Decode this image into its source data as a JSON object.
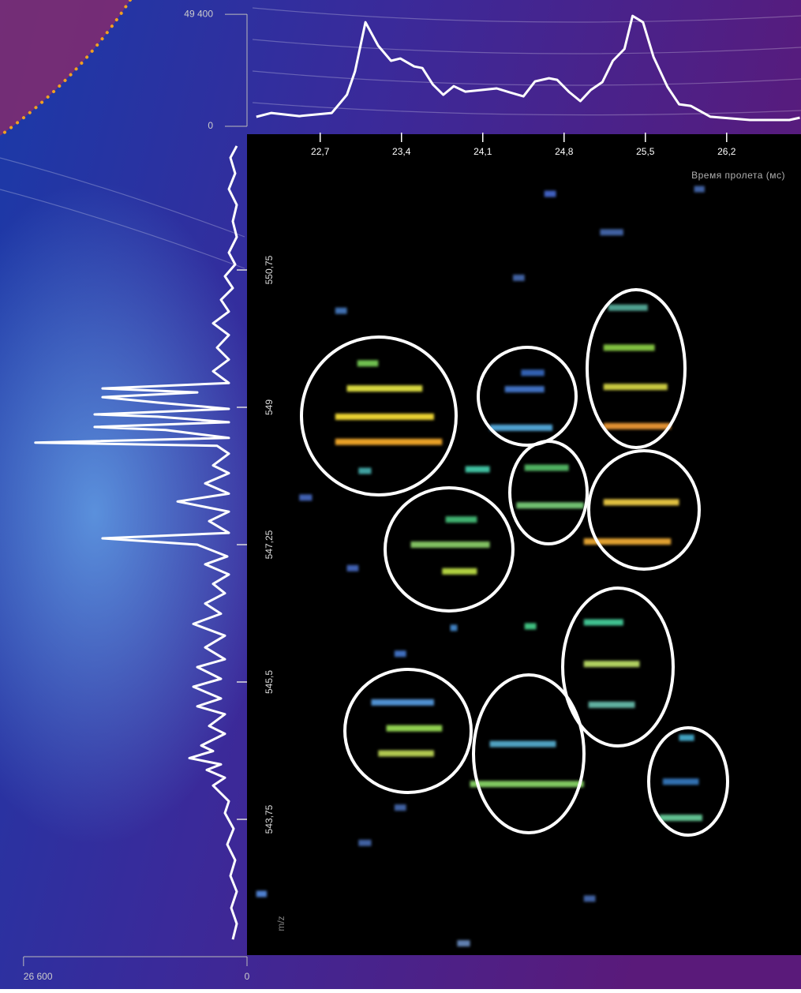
{
  "chart_data": [
    {
      "type": "line",
      "x_label": "Время пролета (мс)",
      "color": "#ffffff",
      "x": [
        22.15,
        22.28,
        22.52,
        22.8,
        22.93,
        23.0,
        23.09,
        23.2,
        23.31,
        23.39,
        23.51,
        23.58,
        23.67,
        23.76,
        23.85,
        23.95,
        24.09,
        24.22,
        24.33,
        24.45,
        24.55,
        24.67,
        24.74,
        24.84,
        24.94,
        25.03,
        25.13,
        25.22,
        25.32,
        25.39,
        25.48,
        25.57,
        25.69,
        25.79,
        25.89,
        26.06,
        26.4,
        26.74,
        26.83
      ],
      "values": [
        4170,
        5900,
        4500,
        5900,
        13900,
        24300,
        45900,
        35500,
        28900,
        29900,
        26400,
        25700,
        18400,
        13900,
        17700,
        15300,
        16000,
        16700,
        15000,
        13200,
        19800,
        21200,
        20500,
        15300,
        11100,
        16000,
        19500,
        28900,
        34100,
        48700,
        45900,
        30600,
        17400,
        9700,
        9000,
        4200,
        2800,
        2800,
        3800
      ],
      "xlim": [
        22.07,
        26.84
      ],
      "xticks": [
        {
          "value": 22.7,
          "label": "22,7"
        },
        {
          "value": 23.4,
          "label": "23,4"
        },
        {
          "value": 24.1,
          "label": "24,1"
        },
        {
          "value": 24.8,
          "label": "24,8"
        },
        {
          "value": 25.5,
          "label": "25,5"
        },
        {
          "value": 26.2,
          "label": "26,2"
        }
      ],
      "ylim": [
        0,
        55700
      ],
      "yticks": [
        0,
        {
          "value": 49400,
          "label": "49 400"
        }
      ]
    },
    {
      "type": "line",
      "orientation": "vertical",
      "x_label": "m/z",
      "color": "#ffffff",
      "x": [
        542.22,
        542.42,
        542.62,
        542.83,
        543.03,
        543.23,
        543.43,
        543.63,
        543.83,
        543.98,
        544.18,
        544.28,
        544.38,
        544.45,
        544.53,
        544.62,
        544.69,
        544.84,
        544.94,
        545.09,
        545.19,
        545.29,
        545.44,
        545.54,
        545.69,
        545.79,
        545.94,
        546.09,
        546.24,
        546.37,
        546.5,
        546.63,
        546.75,
        546.87,
        547.0,
        547.1,
        547.25,
        547.33,
        547.4,
        547.55,
        547.67,
        547.8,
        547.9,
        548.03,
        548.16,
        548.26,
        548.41,
        548.51,
        548.55,
        548.61,
        548.71,
        548.75,
        548.81,
        548.88,
        548.91,
        548.98,
        549.06,
        549.13,
        549.19,
        549.24,
        549.31,
        549.46,
        549.61,
        549.76,
        549.92,
        550.07,
        550.22,
        550.37,
        550.52,
        550.67,
        550.82,
        550.97,
        551.17,
        551.37,
        551.58,
        551.78,
        551.98,
        552.18,
        552.33
      ],
      "values": [
        1690,
        1220,
        1880,
        1220,
        1970,
        1410,
        2350,
        1600,
        2630,
        2160,
        4040,
        2630,
        4790,
        3100,
        6860,
        4040,
        5450,
        2630,
        4510,
        2630,
        5920,
        3100,
        6390,
        3100,
        5920,
        2630,
        4980,
        2630,
        6390,
        3100,
        4980,
        2630,
        4040,
        2160,
        4980,
        2350,
        5920,
        17200,
        2160,
        4510,
        2160,
        8270,
        2160,
        4980,
        2160,
        4040,
        2160,
        3570,
        25190,
        2160,
        9680,
        18140,
        2160,
        10620,
        18140,
        2160,
        10620,
        17200,
        5920,
        17200,
        2160,
        4040,
        2160,
        3570,
        2160,
        4040,
        2160,
        3100,
        1690,
        2630,
        1410,
        2160,
        1220,
        1690,
        1220,
        2160,
        1410,
        1970,
        1220
      ],
      "xlim": [
        542.02,
        552.48
      ],
      "xticks": [
        {
          "value": 543.75,
          "label": "543,75"
        },
        {
          "value": 545.5,
          "label": "545,5"
        },
        {
          "value": 547.25,
          "label": "547,25"
        },
        549,
        {
          "value": 550.75,
          "label": "550,75"
        }
      ],
      "ylim": [
        0,
        29400
      ],
      "yticks": [
        0,
        {
          "value": 26600,
          "label": "26 600"
        }
      ]
    },
    {
      "type": "heatmap",
      "x": [
        22.83,
        22.83,
        22.93,
        23.02,
        23.03,
        24.16,
        24.29,
        24.43,
        25.14,
        25.14,
        25.14,
        25.18,
        24.39,
        24.46,
        25.14,
        24.97,
        23.48,
        23.75,
        23.78,
        24.97,
        24.97,
        25.01,
        23.14,
        23.27,
        23.2,
        23.99,
        24.16,
        25.62,
        25.65,
        25.79,
        24.63,
        25.11,
        24.36,
        22.83,
        23.34,
        23.82,
        24.46,
        22.93,
        22.15,
        23.88,
        24.97,
        25.92,
        23.95,
        22.52,
        23.34,
        23.03
      ],
      "x_end": [
        23.68,
        23.75,
        23.58,
        23.2,
        23.14,
        24.7,
        24.63,
        24.63,
        25.72,
        25.69,
        25.58,
        25.52,
        24.97,
        24.84,
        25.79,
        25.72,
        24.16,
        24.05,
        24.05,
        25.31,
        25.45,
        25.41,
        23.68,
        23.75,
        23.68,
        24.97,
        24.73,
        25.99,
        25.96,
        25.92,
        24.73,
        25.31,
        24.46,
        22.93,
        23.44,
        23.88,
        24.56,
        23.03,
        22.24,
        23.99,
        25.07,
        26.01,
        24.16,
        22.63,
        23.44,
        23.14
      ],
      "values": [
        548.88,
        548.56,
        549.24,
        549.56,
        548.19,
        548.74,
        549.23,
        549.44,
        548.76,
        549.26,
        549.76,
        550.27,
        547.75,
        548.23,
        547.79,
        547.29,
        547.25,
        546.91,
        547.57,
        546.26,
        545.73,
        545.21,
        545.24,
        544.91,
        544.59,
        544.2,
        544.71,
        543.77,
        544.23,
        544.79,
        551.72,
        551.23,
        550.65,
        550.23,
        545.86,
        546.19,
        546.21,
        546.95,
        542.8,
        542.17,
        542.74,
        551.78,
        548.21,
        547.85,
        543.9,
        543.45
      ],
      "colors": [
        "#e8d030",
        "#e8a028",
        "#d8d840",
        "#70c050",
        "#40a0a0",
        "#50a0d0",
        "#4070c0",
        "#3060b0",
        "#e09030",
        "#c8c840",
        "#80c040",
        "#50a090",
        "#70c070",
        "#50b060",
        "#e0c040",
        "#e0a030",
        "#80c060",
        "#b0d040",
        "#40b070",
        "#40c090",
        "#b0d060",
        "#60b0a0",
        "#5090d0",
        "#90d050",
        "#b0c850",
        "#80c860",
        "#50a0c0",
        "#60c090",
        "#3070b0",
        "#40a0c0",
        "#4060c0",
        "#4060a0",
        "#4060a0",
        "#4070b0",
        "#4070c0",
        "#4080c0",
        "#40c080",
        "#4060b0",
        "#5080d0",
        "#6080b0",
        "#4060a0",
        "#4060a0",
        "#40c0a0",
        "#4060b0",
        "#4060a0",
        "#4060a0"
      ]
    }
  ]
}
